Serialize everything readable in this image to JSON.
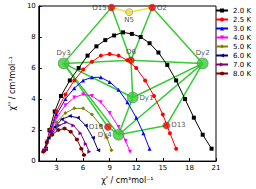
{
  "chart_data": {
    "type": "line",
    "x_label": "χ' / cm³mol⁻¹",
    "y_label": "χ'' / cm³mol⁻¹",
    "xlim": [
      1,
      21
    ],
    "xticks": [
      3,
      6,
      9,
      12,
      15,
      18,
      21
    ],
    "ylim": [
      0,
      10
    ],
    "yticks": [
      0,
      2,
      4,
      6,
      8,
      10
    ],
    "grid": false,
    "legend": "top-right",
    "series": [
      {
        "name": "2.0 K",
        "color": "#000000",
        "marker": "square",
        "x": [
          1.8,
          2.2,
          2.8,
          3.5,
          4.5,
          5.5,
          6.5,
          7.5,
          8.5,
          9.5,
          10.5,
          11.5,
          12.5,
          13.5,
          14.5,
          15.5,
          16.5,
          17.5,
          18.5,
          19.5,
          20.5
        ],
        "values": [
          0.8,
          2,
          3.2,
          4.2,
          5.2,
          6,
          6.8,
          7.4,
          7.8,
          8.1,
          8.3,
          8.2,
          8,
          7.6,
          7,
          6.2,
          5.2,
          4,
          2.8,
          1.7,
          0.8
        ]
      },
      {
        "name": "2.5 K",
        "color": "#ff0000",
        "marker": "circle",
        "x": [
          1.8,
          2.3,
          3,
          4,
          5,
          6,
          7,
          8,
          9,
          10,
          11,
          12,
          13,
          14,
          15,
          15.8,
          16.5
        ],
        "values": [
          0.8,
          2,
          3.2,
          4.3,
          5.2,
          5.9,
          6.4,
          6.8,
          6.9,
          6.8,
          6.5,
          6,
          5.2,
          4.2,
          3,
          1.8,
          0.8
        ]
      },
      {
        "name": "3.0 K",
        "color": "#0000ff",
        "marker": "triangle",
        "x": [
          1.8,
          2.3,
          3,
          4,
          5,
          6,
          7,
          8,
          9,
          10,
          11,
          12,
          12.8,
          13.5
        ],
        "values": [
          0.8,
          1.9,
          3,
          4,
          4.7,
          5.2,
          5.4,
          5.4,
          5.1,
          4.6,
          3.8,
          2.8,
          1.8,
          0.8
        ]
      },
      {
        "name": "4.0 K",
        "color": "#ff00ff",
        "marker": "triangle_down",
        "x": [
          1.7,
          2.2,
          3,
          4,
          5,
          6,
          7,
          8,
          9,
          10,
          10.8,
          11.3
        ],
        "values": [
          0.7,
          1.7,
          2.8,
          3.6,
          4.1,
          4.3,
          4.2,
          3.8,
          3.1,
          2.2,
          1.3,
          0.6
        ]
      },
      {
        "name": "5.0 K",
        "color": "#808000",
        "marker": "diamond",
        "x": [
          1.7,
          2.2,
          3,
          4,
          5,
          6,
          7,
          8,
          8.7,
          9.2
        ],
        "values": [
          0.7,
          1.6,
          2.5,
          3.1,
          3.4,
          3.4,
          3,
          2.3,
          1.5,
          0.7
        ]
      },
      {
        "name": "6.0 K",
        "color": "#000080",
        "marker": "triangle_left",
        "x": [
          1.6,
          2.1,
          2.8,
          3.6,
          4.5,
          5.4,
          6.3,
          7.1,
          7.7
        ],
        "values": [
          0.7,
          1.5,
          2.2,
          2.7,
          2.9,
          2.8,
          2.3,
          1.5,
          0.7
        ]
      },
      {
        "name": "7.0 K",
        "color": "#800080",
        "marker": "triangle_right",
        "x": [
          1.6,
          2,
          2.6,
          3.3,
          4.1,
          4.9,
          5.7,
          6.3,
          6.7
        ],
        "values": [
          0.7,
          1.3,
          1.9,
          2.3,
          2.5,
          2.3,
          1.8,
          1.1,
          0.6
        ]
      },
      {
        "name": "8.0 K",
        "color": "#800000",
        "marker": "hexagon",
        "x": [
          1.5,
          1.9,
          2.5,
          3.2,
          3.9,
          4.6,
          5.3,
          5.8,
          6.1
        ],
        "values": [
          0.6,
          1.2,
          1.7,
          2,
          2.1,
          1.9,
          1.4,
          0.8,
          0.4
        ]
      }
    ],
    "annotations": [
      {
        "text": "O15",
        "x": 9.2,
        "y": 9.9,
        "color": "#ff0000"
      },
      {
        "text": "N5",
        "x": 11.2,
        "y": 9.6,
        "color": "#f0e040"
      },
      {
        "text": "O2",
        "x": 13.8,
        "y": 9.9,
        "color": "#ff0000"
      },
      {
        "text": "O6",
        "x": 11.4,
        "y": 6.5,
        "color": "#ff0000"
      },
      {
        "text": "Dy3",
        "x": 3.8,
        "y": 6.3,
        "color": "#33cc33"
      },
      {
        "text": "Dy2",
        "x": 19.5,
        "y": 6.3,
        "color": "#33cc33"
      },
      {
        "text": "Dy1",
        "x": 11.6,
        "y": 4.1,
        "color": "#33cc33"
      },
      {
        "text": "O10",
        "x": 8.8,
        "y": 2.2,
        "color": "#ff0000"
      },
      {
        "text": "O13",
        "x": 15.4,
        "y": 2.3,
        "color": "#ff0000"
      },
      {
        "text": "Dy4",
        "x": 10,
        "y": 1.7,
        "color": "#33cc33"
      }
    ]
  }
}
